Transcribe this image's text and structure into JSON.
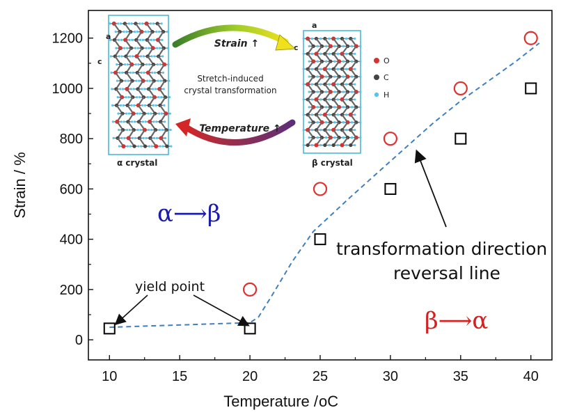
{
  "chart_data": {
    "type": "scatter",
    "title": "",
    "xlabel": "Temperature / ",
    "xlabel_unit": "oC",
    "ylabel": "Strain / %",
    "xlim": [
      8.5,
      41.5
    ],
    "ylim": [
      -80,
      1310
    ],
    "xticks": [
      10,
      15,
      20,
      25,
      30,
      35,
      40
    ],
    "yticks": [
      0,
      200,
      400,
      600,
      800,
      1000,
      1200
    ],
    "grid": false,
    "series": [
      {
        "marker": "square",
        "color": "#000000",
        "points": [
          [
            10,
            45
          ],
          [
            20,
            45
          ],
          [
            25,
            400
          ],
          [
            30,
            600
          ],
          [
            35,
            800
          ],
          [
            40,
            1000
          ]
        ]
      },
      {
        "marker": "circle",
        "color": "#e03030",
        "points": [
          [
            20,
            200
          ],
          [
            25,
            600
          ],
          [
            30,
            800
          ],
          [
            35,
            1000
          ],
          [
            40,
            1200
          ]
        ]
      }
    ],
    "line": {
      "style": "dashed",
      "color": "#3f7fc0",
      "points": [
        [
          10,
          50
        ],
        [
          20,
          68
        ],
        [
          20.6,
          90
        ],
        [
          21.5,
          170
        ],
        [
          23,
          310
        ],
        [
          24.5,
          430
        ],
        [
          27,
          560
        ],
        [
          29,
          660
        ],
        [
          31,
          760
        ],
        [
          33,
          860
        ],
        [
          35,
          950
        ],
        [
          37,
          1030
        ],
        [
          39,
          1110
        ],
        [
          40.6,
          1180
        ]
      ]
    },
    "annotations": {
      "alpha_beta": "α⟶β",
      "beta_alpha": "β⟶α",
      "yield_point": "yield point",
      "transformation_line_1": "transformation direction",
      "transformation_line_2": "reversal line"
    },
    "colors": {
      "alpha_beta": "#1c1ca8",
      "beta_alpha": "#d42020",
      "inset_strain": "#2424b0",
      "inset_temperature": "#cc1f1f",
      "inset_border": "#4bb8d8",
      "oxygen": "#d83030",
      "carbon": "#444444",
      "hydrogen": "#58c4e8"
    }
  },
  "inset": {
    "strain_label": "Strain ↑",
    "temperature_label": "Temperature ↑",
    "center_line1": "Stretch-induced",
    "center_line2": "crystal transformation",
    "alpha_crystal": "α crystal",
    "beta_crystal": "β crystal",
    "alpha_axis_a": "a",
    "alpha_axis_c": "c",
    "beta_axis_a": "a",
    "beta_axis_c": "c",
    "legend": [
      {
        "symbol": "O",
        "color": "#d83030"
      },
      {
        "symbol": "C",
        "color": "#444444"
      },
      {
        "symbol": "H",
        "color": "#58c4e8"
      }
    ]
  }
}
